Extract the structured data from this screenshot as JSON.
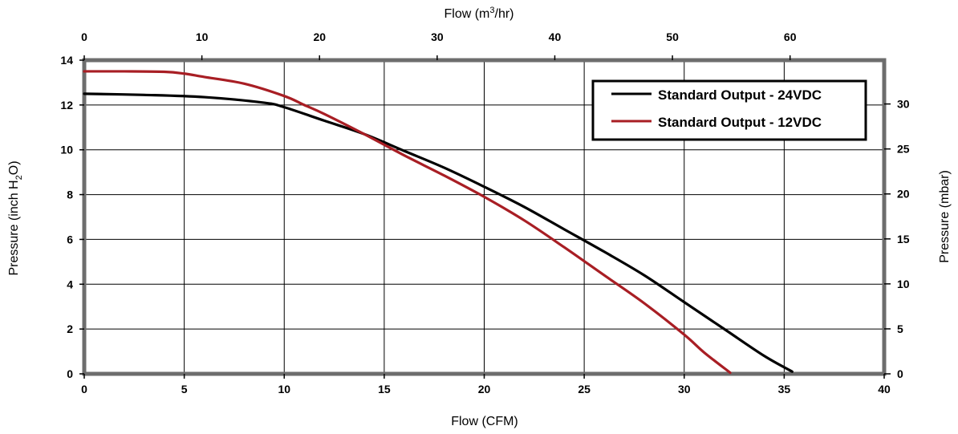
{
  "chart_data": {
    "type": "line",
    "x_bottom": {
      "label": "Flow (CFM)",
      "range": [
        0,
        40
      ],
      "ticks": [
        "0",
        "5",
        "10",
        "15",
        "20",
        "25",
        "30",
        "35",
        "40"
      ]
    },
    "x_top": {
      "label_main": "Flow (m",
      "label_sup": "3",
      "label_end": "/hr)",
      "range": [
        0,
        68
      ],
      "ticks": [
        "0",
        "10",
        "20",
        "30",
        "40",
        "50",
        "60"
      ]
    },
    "y_left": {
      "label_main": "Pressure (inch  H",
      "label_sub": "2",
      "label_end": "O)",
      "range": [
        0,
        14
      ],
      "ticks": [
        "0",
        "2",
        "4",
        "6",
        "8",
        "10",
        "12",
        "14"
      ]
    },
    "y_right": {
      "label": "Pressure (mbar)",
      "range": [
        0,
        34.87
      ],
      "ticks": [
        "0",
        "5",
        "10",
        "15",
        "20",
        "25",
        "30"
      ]
    },
    "grid": true,
    "legend_position": "top-right",
    "series": [
      {
        "name": "Standard Output - 24VDC",
        "color": "#000000",
        "x": [
          0,
          3,
          6,
          9,
          10,
          12,
          14,
          16,
          18,
          20,
          22,
          24,
          26,
          28,
          30,
          32,
          34,
          35.4
        ],
        "y": [
          12.5,
          12.45,
          12.35,
          12.1,
          11.9,
          11.3,
          10.7,
          9.95,
          9.2,
          8.35,
          7.45,
          6.45,
          5.45,
          4.4,
          3.2,
          2.0,
          0.8,
          0.1
        ]
      },
      {
        "name": "Standard Output - 12VDC",
        "color": "#a81e24",
        "x": [
          0,
          2,
          4,
          5,
          6,
          8,
          10,
          11,
          12,
          14,
          16,
          18,
          20,
          22,
          24,
          26,
          28,
          30,
          31,
          32.3
        ],
        "y": [
          13.5,
          13.5,
          13.48,
          13.4,
          13.25,
          12.95,
          12.4,
          12.0,
          11.6,
          10.7,
          9.75,
          8.85,
          7.9,
          6.85,
          5.65,
          4.4,
          3.15,
          1.75,
          0.95,
          0.05
        ]
      }
    ]
  }
}
